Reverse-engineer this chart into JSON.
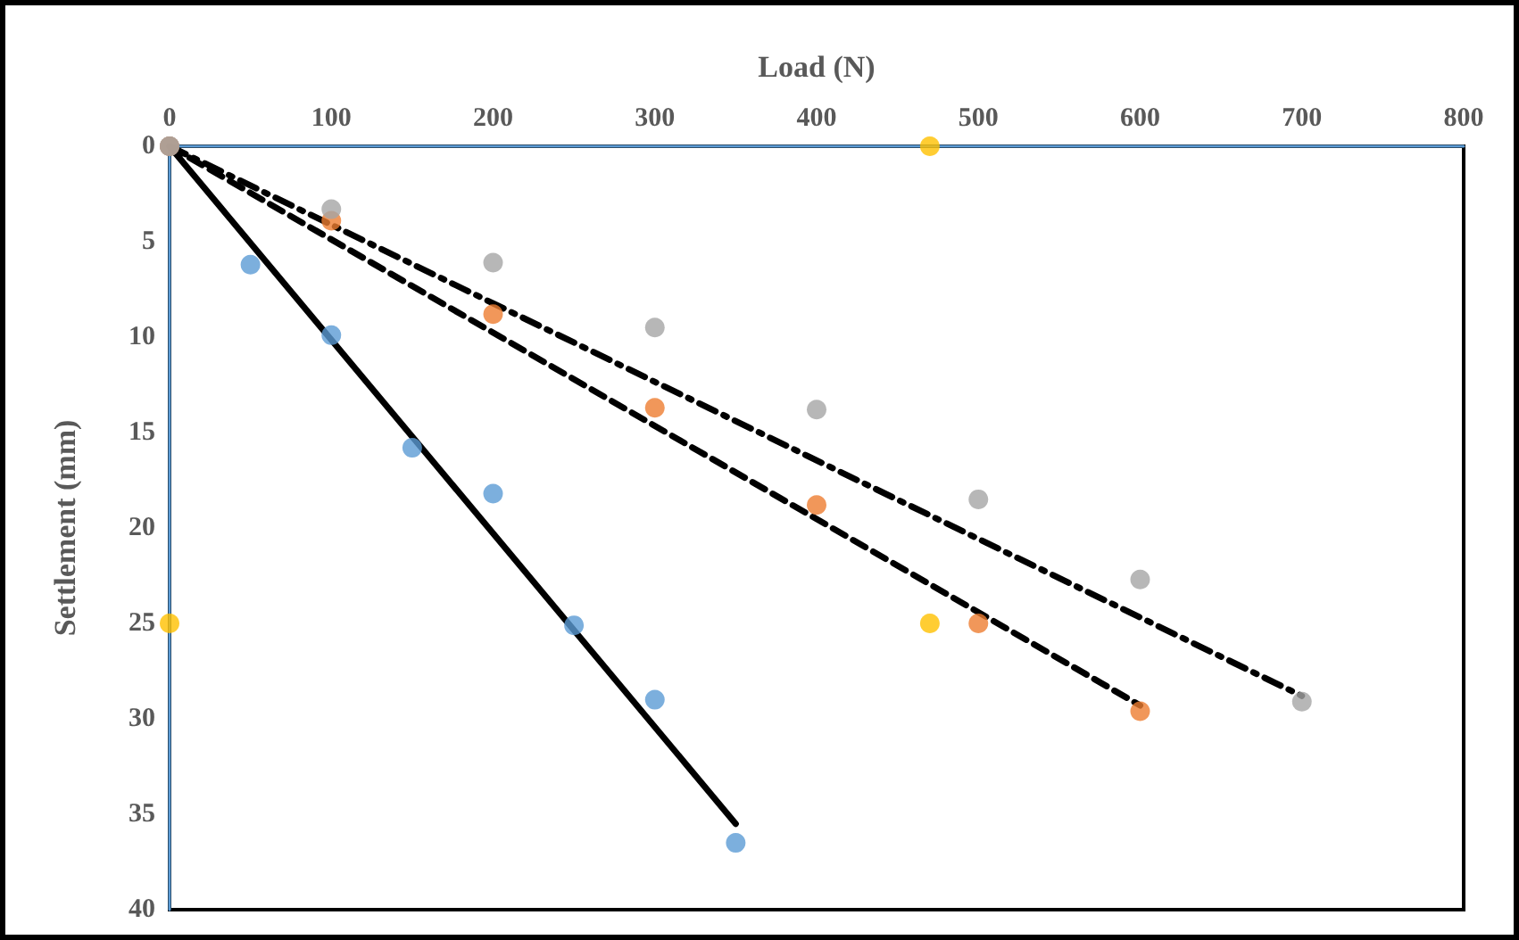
{
  "chart_data": {
    "type": "scatter",
    "xlabel": "Load (N)",
    "ylabel": "Settlement (mm)",
    "xlim": [
      0,
      800
    ],
    "xticks": [
      0,
      100,
      200,
      300,
      400,
      500,
      600,
      700,
      800
    ],
    "ylim": [
      40,
      0
    ],
    "yticks": [
      0,
      5,
      10,
      15,
      20,
      25,
      30,
      35,
      40
    ],
    "grid": false,
    "series": [
      {
        "color": "#5b9bd5",
        "marker": "circle",
        "x": [
          0,
          50,
          100,
          150,
          200,
          250,
          300,
          350
        ],
        "values": [
          0,
          6.2,
          9.9,
          15.8,
          18.2,
          25.1,
          29,
          36.5
        ]
      },
      {
        "color": "#ed7d31",
        "marker": "circle",
        "x": [
          0,
          100,
          200,
          300,
          400,
          500,
          600
        ],
        "values": [
          0,
          3.9,
          8.8,
          13.7,
          18.8,
          25,
          29.6
        ]
      },
      {
        "color": "#a5a5a5",
        "marker": "circle",
        "x": [
          0,
          100,
          200,
          300,
          400,
          500,
          600,
          700
        ],
        "values": [
          0,
          3.3,
          6.1,
          9.5,
          13.8,
          18.5,
          22.7,
          29.1
        ]
      },
      {
        "color": "#ffc000",
        "marker": "circle",
        "x": [
          470,
          0,
          470
        ],
        "values": [
          0,
          25,
          25
        ]
      },
      {
        "type": "line",
        "color": "#000000",
        "marker": "none",
        "line_style": "solid",
        "x": [
          0,
          350
        ],
        "values": [
          0,
          35.5
        ]
      },
      {
        "type": "line",
        "color": "#000000",
        "marker": "none",
        "line_style": "dashed",
        "x": [
          0,
          600
        ],
        "values": [
          0,
          29.3
        ]
      },
      {
        "type": "line",
        "color": "#000000",
        "marker": "none",
        "line_style": "dashdot",
        "x": [
          0,
          700
        ],
        "values": [
          0,
          28.8
        ]
      }
    ]
  }
}
